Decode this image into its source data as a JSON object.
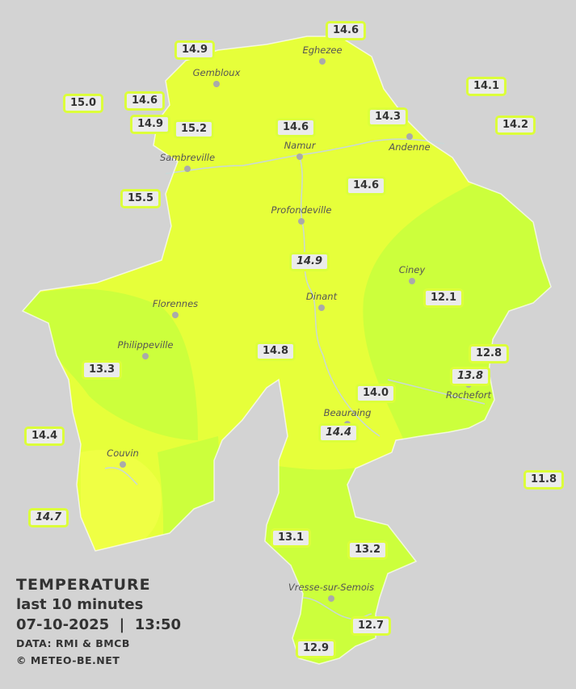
{
  "legend": {
    "title": "TEMPERATURE",
    "period": "last 10 minutes",
    "datetime": "07-10-2025  |  13:50",
    "source": "DATA: RMI & BMCB",
    "copyright": "© METEO-BE.NET"
  },
  "colors": {
    "background": "#d3d3d3",
    "zone_14": "#e6ff3a",
    "zone_13": "#ccff3c",
    "zone_15": "#efff44",
    "badge_border": "#dcff3a"
  },
  "towns": [
    {
      "name": "Eghezee"
    },
    {
      "name": "Gembloux"
    },
    {
      "name": "Andenne"
    },
    {
      "name": "Namur"
    },
    {
      "name": "Sambreville"
    },
    {
      "name": "Profondeville"
    },
    {
      "name": "Ciney"
    },
    {
      "name": "Florennes"
    },
    {
      "name": "Dinant"
    },
    {
      "name": "Philippeville"
    },
    {
      "name": "Rochefort"
    },
    {
      "name": "Beauraing"
    },
    {
      "name": "Couvin"
    },
    {
      "name": "Vresse-sur-Semois"
    }
  ],
  "stations": [
    {
      "value": "14.6",
      "italic": false
    },
    {
      "value": "14.9",
      "italic": false
    },
    {
      "value": "14.1",
      "italic": false
    },
    {
      "value": "15.0",
      "italic": false
    },
    {
      "value": "14.6",
      "italic": false
    },
    {
      "value": "14.3",
      "italic": false
    },
    {
      "value": "14.2",
      "italic": false
    },
    {
      "value": "14.9",
      "italic": false
    },
    {
      "value": "15.2",
      "italic": false
    },
    {
      "value": "14.6",
      "italic": false
    },
    {
      "value": "14.6",
      "italic": false
    },
    {
      "value": "15.5",
      "italic": false
    },
    {
      "value": "14.9",
      "italic": true
    },
    {
      "value": "12.1",
      "italic": false
    },
    {
      "value": "13.3",
      "italic": false
    },
    {
      "value": "14.8",
      "italic": false
    },
    {
      "value": "12.8",
      "italic": false
    },
    {
      "value": "13.8",
      "italic": true
    },
    {
      "value": "14.0",
      "italic": false
    },
    {
      "value": "14.4",
      "italic": true
    },
    {
      "value": "14.4",
      "italic": false
    },
    {
      "value": "11.8",
      "italic": false
    },
    {
      "value": "14.7",
      "italic": true
    },
    {
      "value": "13.1",
      "italic": false
    },
    {
      "value": "13.2",
      "italic": false
    },
    {
      "value": "12.7",
      "italic": false
    },
    {
      "value": "12.9",
      "italic": false
    }
  ]
}
